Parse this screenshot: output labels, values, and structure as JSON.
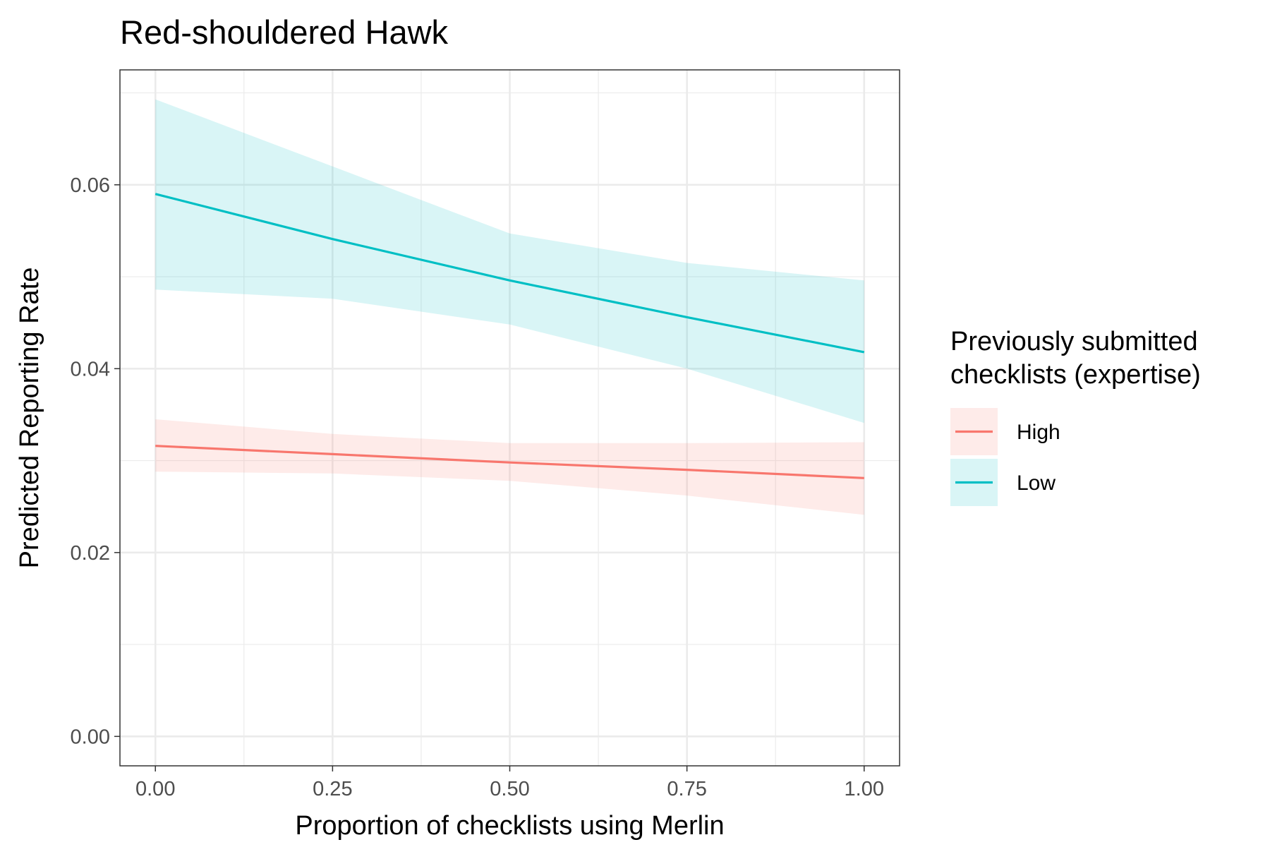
{
  "chart_data": {
    "type": "line",
    "title": "Red-shouldered Hawk",
    "xlabel": "Proportion of checklists using Merlin",
    "ylabel": "Predicted Reporting Rate",
    "xlim": [
      -0.05,
      1.05
    ],
    "ylim": [
      -0.0032,
      0.0725
    ],
    "x_ticks": [
      0,
      0.25,
      0.5,
      0.75,
      1
    ],
    "x_tick_labels": [
      "0.00",
      "0.25",
      "0.50",
      "0.75",
      "1.00"
    ],
    "y_ticks": [
      0,
      0.02,
      0.04,
      0.06
    ],
    "y_tick_labels": [
      "0.00",
      "0.02",
      "0.04",
      "0.06"
    ],
    "grid": true,
    "legend": {
      "title_lines": [
        "Previously submitted",
        "checklists (expertise)"
      ],
      "placement": "right"
    },
    "series": [
      {
        "name": "High",
        "color": "#f8766d",
        "fill": "#fdecea",
        "x": [
          0,
          0.25,
          0.5,
          0.75,
          1
        ],
        "y": [
          0.0316,
          0.0307,
          0.0298,
          0.029,
          0.0281
        ],
        "lower": [
          0.0288,
          0.0286,
          0.0278,
          0.0262,
          0.0241
        ],
        "upper": [
          0.0345,
          0.0329,
          0.0319,
          0.0319,
          0.032
        ]
      },
      {
        "name": "Low",
        "color": "#00bfc4",
        "fill": "#dff5f6",
        "x": [
          0,
          0.25,
          0.5,
          0.75,
          1
        ],
        "y": [
          0.059,
          0.0541,
          0.0496,
          0.0456,
          0.0418
        ],
        "lower": [
          0.0486,
          0.0476,
          0.0448,
          0.04,
          0.0341
        ],
        "upper": [
          0.0693,
          0.062,
          0.0547,
          0.0515,
          0.0496
        ]
      }
    ]
  }
}
